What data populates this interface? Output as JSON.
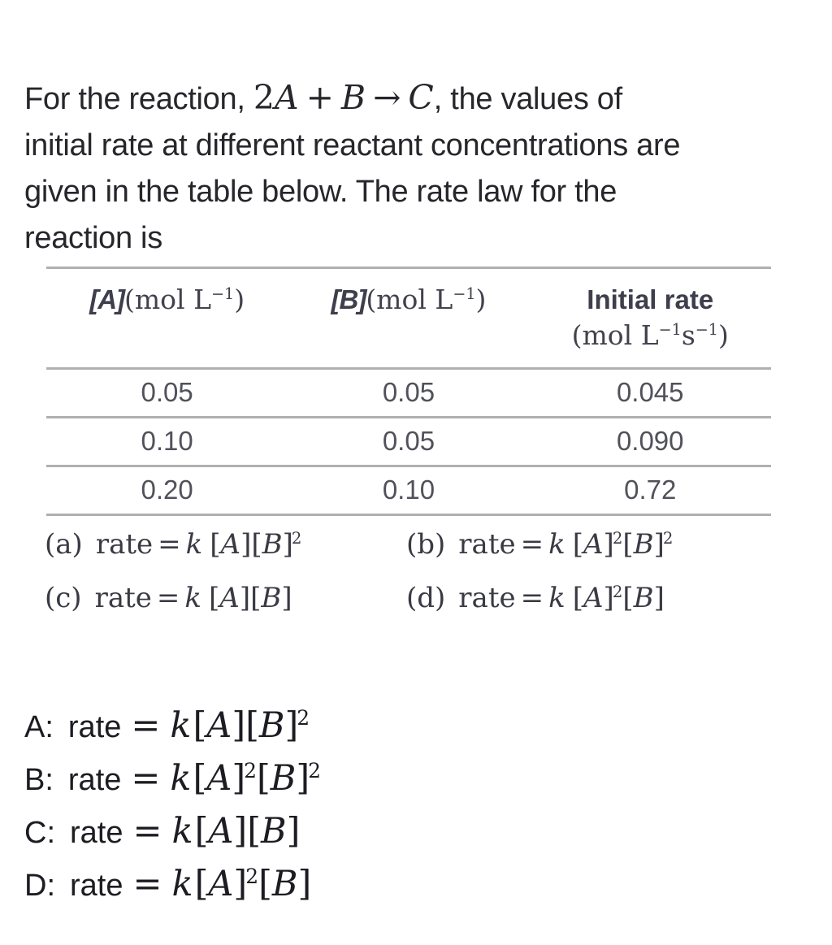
{
  "colors": {
    "text_primary": "#26262b",
    "text_scan": "#4a4a55",
    "rule": "#b0b0b0"
  },
  "question": {
    "line1_prefix": "For the reaction, ",
    "equation": {
      "coefficient": "2",
      "reactant_a": "A",
      "plus": "+",
      "reactant_b": "B",
      "arrow": "→",
      "product": "C"
    },
    "line1_suffix": ", the values of",
    "line2": "initial rate at different reactant concentrations are",
    "line3": "given in the table below. The rate law for the",
    "line4": "reaction is"
  },
  "table": {
    "headers": [
      {
        "symbol": "[A]",
        "unit_open": "(mol L",
        "unit_sup": "−1",
        "unit_close": ")"
      },
      {
        "symbol": "[B]",
        "unit_open": "(mol L",
        "unit_sup": "−1",
        "unit_close": ")"
      },
      {
        "title": "Initial rate",
        "unit_open": "(mol L",
        "unit_sup1": "−1",
        "unit_mid": "s",
        "unit_sup2": "−1",
        "unit_close": ")"
      }
    ],
    "rows": [
      [
        "0.05",
        "0.05",
        "0.045"
      ],
      [
        "0.10",
        "0.05",
        "0.090"
      ],
      [
        "0.20",
        "0.10",
        "0.72"
      ]
    ]
  },
  "options": [
    {
      "label": "(a)",
      "formula": {
        "pre": "rate",
        "eq": "=",
        "k": "k",
        "vars": [
          {
            "name": "A",
            "sup": ""
          },
          {
            "name": "B",
            "sup": "2"
          }
        ]
      }
    },
    {
      "label": "(b)",
      "formula": {
        "pre": "rate",
        "eq": "=",
        "k": "k",
        "vars": [
          {
            "name": "A",
            "sup": "2"
          },
          {
            "name": "B",
            "sup": "2"
          }
        ]
      }
    },
    {
      "label": "(c)",
      "formula": {
        "pre": "rate",
        "eq": "=",
        "k": "k",
        "vars": [
          {
            "name": "A",
            "sup": ""
          },
          {
            "name": "B",
            "sup": ""
          }
        ]
      }
    },
    {
      "label": "(d)",
      "formula": {
        "pre": "rate",
        "eq": "=",
        "k": "k",
        "vars": [
          {
            "name": "A",
            "sup": "2"
          },
          {
            "name": "B",
            "sup": ""
          }
        ]
      }
    }
  ],
  "answers": [
    {
      "label": "A:",
      "formula": {
        "pre": "rate",
        "eq": "=",
        "k": "k",
        "vars": [
          {
            "name": "A",
            "sup": ""
          },
          {
            "name": "B",
            "sup": "2"
          }
        ]
      }
    },
    {
      "label": "B:",
      "formula": {
        "pre": "rate",
        "eq": "=",
        "k": "k",
        "vars": [
          {
            "name": "A",
            "sup": "2"
          },
          {
            "name": "B",
            "sup": "2"
          }
        ]
      }
    },
    {
      "label": "C:",
      "formula": {
        "pre": "rate",
        "eq": "=",
        "k": "k",
        "vars": [
          {
            "name": "A",
            "sup": ""
          },
          {
            "name": "B",
            "sup": ""
          }
        ]
      }
    },
    {
      "label": "D:",
      "formula": {
        "pre": "rate",
        "eq": "=",
        "k": "k",
        "vars": [
          {
            "name": "A",
            "sup": "2"
          },
          {
            "name": "B",
            "sup": ""
          }
        ]
      }
    }
  ]
}
